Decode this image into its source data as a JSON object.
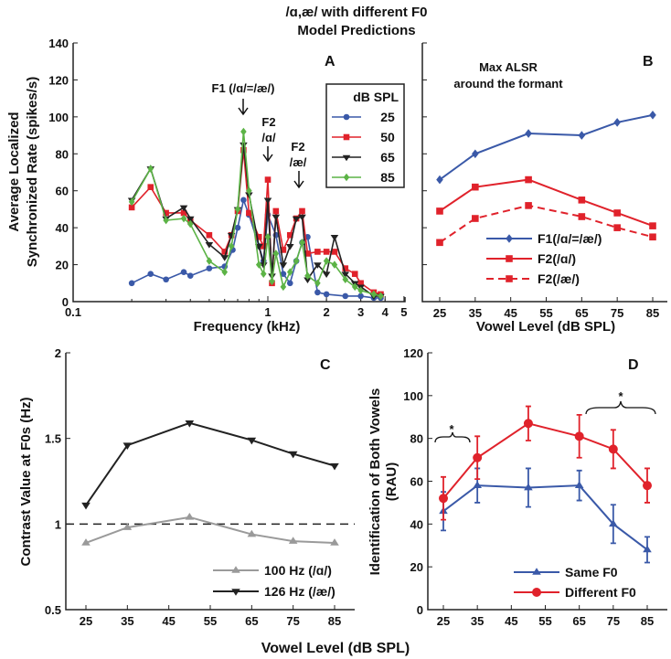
{
  "title": [
    "/ɑ,æ/ with different F0",
    "Model Predictions"
  ],
  "colors": {
    "blue": "#3a59a8",
    "red": "#e0222b",
    "black": "#222222",
    "green": "#5cb346",
    "gray": "#9a9a9a"
  },
  "chart_data": [
    {
      "panel": "A",
      "type": "line",
      "xscale": "log",
      "xlabel": "Frequency (kHz)",
      "ylabel": [
        "Average Localized",
        "Synchronized Rate (spikes/s)"
      ],
      "xlim": [
        0.1,
        5
      ],
      "ylim": [
        0,
        140
      ],
      "xticks": [
        "0.1",
        "1",
        "2",
        "3",
        "4",
        "5"
      ],
      "xtick_values": [
        0.1,
        1,
        2,
        3,
        4,
        5
      ],
      "yticks": [
        "0",
        "20",
        "40",
        "60",
        "80",
        "100",
        "120",
        "140"
      ],
      "legend_title": "dB SPL",
      "legend_position": "top-right",
      "annotations": {
        "f1": "F1 (/ɑ/=/æ/)",
        "f2a": [
          "F2",
          "/ɑ/"
        ],
        "f2ae": [
          "F2",
          "/æ/"
        ]
      },
      "series": [
        {
          "name": "25",
          "color": "#3a59a8",
          "marker": "circle",
          "points": [
            [
              0.2,
              10
            ],
            [
              0.25,
              15
            ],
            [
              0.3,
              12
            ],
            [
              0.37,
              16
            ],
            [
              0.4,
              14
            ],
            [
              0.5,
              18
            ],
            [
              0.6,
              19
            ],
            [
              0.66,
              28
            ],
            [
              0.7,
              40
            ],
            [
              0.75,
              55
            ],
            [
              0.8,
              47
            ],
            [
              0.9,
              30
            ],
            [
              0.95,
              22
            ],
            [
              1.0,
              47
            ],
            [
              1.1,
              36
            ],
            [
              1.2,
              15
            ],
            [
              1.3,
              10
            ],
            [
              1.4,
              22
            ],
            [
              1.5,
              32
            ],
            [
              1.6,
              35
            ],
            [
              1.8,
              5
            ],
            [
              2.0,
              4
            ],
            [
              2.5,
              3
            ],
            [
              3.0,
              3
            ],
            [
              3.5,
              2
            ],
            [
              3.8,
              2
            ]
          ]
        },
        {
          "name": "50",
          "color": "#e0222b",
          "marker": "square",
          "points": [
            [
              0.2,
              51
            ],
            [
              0.25,
              62
            ],
            [
              0.3,
              48
            ],
            [
              0.37,
              48
            ],
            [
              0.4,
              44
            ],
            [
              0.5,
              36
            ],
            [
              0.6,
              27
            ],
            [
              0.65,
              36
            ],
            [
              0.7,
              49
            ],
            [
              0.75,
              82
            ],
            [
              0.8,
              48
            ],
            [
              0.9,
              35
            ],
            [
              0.95,
              30
            ],
            [
              1.0,
              66
            ],
            [
              1.05,
              10
            ],
            [
              1.1,
              49
            ],
            [
              1.2,
              28
            ],
            [
              1.3,
              36
            ],
            [
              1.4,
              45
            ],
            [
              1.5,
              49
            ],
            [
              1.6,
              26
            ],
            [
              1.8,
              27
            ],
            [
              2.0,
              27
            ],
            [
              2.2,
              27
            ],
            [
              2.5,
              18
            ],
            [
              2.8,
              15
            ],
            [
              3.0,
              10
            ],
            [
              3.5,
              5
            ],
            [
              3.8,
              4
            ]
          ]
        },
        {
          "name": "65",
          "color": "#222222",
          "marker": "triangle-down",
          "points": [
            [
              0.2,
              55
            ],
            [
              0.25,
              72
            ],
            [
              0.3,
              45
            ],
            [
              0.37,
              51
            ],
            [
              0.4,
              45
            ],
            [
              0.5,
              31
            ],
            [
              0.6,
              24
            ],
            [
              0.65,
              36
            ],
            [
              0.7,
              50
            ],
            [
              0.75,
              85
            ],
            [
              0.8,
              58
            ],
            [
              0.9,
              30
            ],
            [
              0.95,
              20
            ],
            [
              1.0,
              55
            ],
            [
              1.05,
              14
            ],
            [
              1.1,
              46
            ],
            [
              1.2,
              20
            ],
            [
              1.3,
              30
            ],
            [
              1.4,
              45
            ],
            [
              1.5,
              46
            ],
            [
              1.6,
              12
            ],
            [
              1.8,
              20
            ],
            [
              2.0,
              15
            ],
            [
              2.2,
              35
            ],
            [
              2.5,
              15
            ],
            [
              2.8,
              10
            ],
            [
              3.0,
              8
            ],
            [
              3.5,
              3
            ],
            [
              3.8,
              3
            ]
          ]
        },
        {
          "name": "85",
          "color": "#5cb346",
          "marker": "diamond",
          "points": [
            [
              0.2,
              54
            ],
            [
              0.25,
              72
            ],
            [
              0.3,
              44
            ],
            [
              0.37,
              45
            ],
            [
              0.4,
              42
            ],
            [
              0.5,
              22
            ],
            [
              0.6,
              16
            ],
            [
              0.65,
              30
            ],
            [
              0.7,
              50
            ],
            [
              0.75,
              92
            ],
            [
              0.8,
              60
            ],
            [
              0.9,
              20
            ],
            [
              0.95,
              15
            ],
            [
              1.0,
              35
            ],
            [
              1.05,
              11
            ],
            [
              1.1,
              26
            ],
            [
              1.2,
              8
            ],
            [
              1.3,
              16
            ],
            [
              1.4,
              22
            ],
            [
              1.5,
              32
            ],
            [
              1.6,
              14
            ],
            [
              1.8,
              10
            ],
            [
              2.0,
              22
            ],
            [
              2.2,
              20
            ],
            [
              2.5,
              12
            ],
            [
              2.8,
              8
            ],
            [
              3.0,
              6
            ],
            [
              3.5,
              4
            ],
            [
              3.8,
              3
            ]
          ]
        }
      ]
    },
    {
      "panel": "B",
      "type": "line",
      "annotation": [
        "Max ALSR",
        "around the formant"
      ],
      "xlabel": "Vowel Level (dB SPL)",
      "xlim": [
        20,
        88
      ],
      "ylim": [
        0,
        140
      ],
      "x": [
        25,
        35,
        50,
        65,
        75,
        85
      ],
      "xticks": [
        "25",
        "35",
        "45",
        "55",
        "65",
        "75",
        "85"
      ],
      "xtick_values": [
        25,
        35,
        45,
        55,
        65,
        75,
        85
      ],
      "legend_position": "bottom-right",
      "series": [
        {
          "name": "F1(/ɑ/=/æ/)",
          "color": "#3a59a8",
          "marker": "diamond",
          "dash": false,
          "values": [
            66,
            80,
            91,
            90,
            97,
            101
          ]
        },
        {
          "name": "F2(/ɑ/)",
          "color": "#e0222b",
          "marker": "square",
          "dash": false,
          "values": [
            49,
            62,
            66,
            55,
            48,
            41
          ]
        },
        {
          "name": "F2(/æ/)",
          "color": "#e0222b",
          "marker": "square",
          "dash": true,
          "values": [
            32,
            45,
            52,
            46,
            40,
            35
          ]
        }
      ]
    },
    {
      "panel": "C",
      "type": "line",
      "ylabel": "Contrast Value at F0s (Hz)",
      "xlim": [
        20,
        88
      ],
      "ylim": [
        0.5,
        2
      ],
      "x": [
        25,
        35,
        50,
        65,
        75,
        85
      ],
      "xticks": [
        "25",
        "35",
        "45",
        "55",
        "65",
        "75",
        "85"
      ],
      "xtick_values": [
        25,
        35,
        45,
        55,
        65,
        75,
        85
      ],
      "yticks": [
        "0.5",
        "1",
        "1.5",
        "2"
      ],
      "ytick_values": [
        0.5,
        1,
        1.5,
        2
      ],
      "reference_line": 1,
      "legend_position": "bottom-right",
      "series": [
        {
          "name": "100 Hz (/ɑ/)",
          "color": "#9a9a9a",
          "marker": "triangle-up",
          "values": [
            0.89,
            0.98,
            1.04,
            0.94,
            0.9,
            0.89
          ]
        },
        {
          "name": "126 Hz (/æ/)",
          "color": "#222222",
          "marker": "triangle-down",
          "values": [
            1.11,
            1.46,
            1.59,
            1.49,
            1.41,
            1.34
          ]
        }
      ]
    },
    {
      "panel": "D",
      "type": "line",
      "ylabel": [
        "Identification of Both Vowels",
        "(RAU)"
      ],
      "xlim": [
        20,
        88
      ],
      "ylim": [
        0,
        120
      ],
      "x": [
        25,
        35,
        50,
        65,
        75,
        85
      ],
      "xticks": [
        "25",
        "35",
        "45",
        "55",
        "65",
        "75",
        "85"
      ],
      "xtick_values": [
        25,
        35,
        45,
        55,
        65,
        75,
        85
      ],
      "yticks": [
        "0",
        "20",
        "40",
        "60",
        "80",
        "100",
        "120"
      ],
      "significance": [
        "*",
        "*"
      ],
      "legend_position": "bottom-right",
      "series": [
        {
          "name": "Same F0",
          "color": "#3a59a8",
          "marker": "triangle-up",
          "values": [
            46,
            58,
            57,
            58,
            40,
            28
          ],
          "errors": [
            9,
            8,
            9,
            7,
            9,
            6
          ]
        },
        {
          "name": "Different F0",
          "color": "#e0222b",
          "marker": "circle",
          "values": [
            52,
            71,
            87,
            81,
            75,
            58
          ],
          "errors": [
            10,
            10,
            8,
            10,
            9,
            8
          ]
        }
      ]
    }
  ],
  "shared_xlabel": "Vowel Level (dB SPL)"
}
